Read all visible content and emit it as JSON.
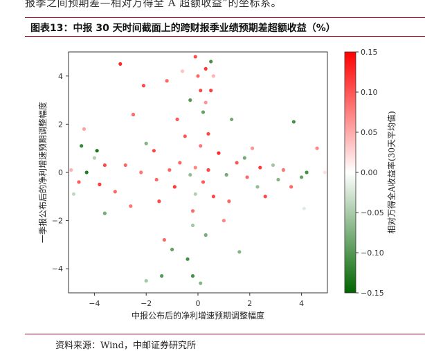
{
  "page": {
    "top_text": "报季之间预期差—相对万得全 A 超额收益”的坐标系。",
    "figure_title": "图表13：中报 30 天时间截面上的跨财报季业绩预期差超额收益（%）",
    "source": "资料来源：Wind，中邮证券研究所"
  },
  "chart_data": {
    "type": "scatter",
    "xlabel": "中报公布后的净利增速预期调整幅度",
    "ylabel": "一季报公布后的净利增速预期调整幅度",
    "colorbar_label": "相对万得全A收益率(30天平均值)",
    "xlim": [
      -5,
      5
    ],
    "ylim": [
      -5,
      5
    ],
    "x_ticks": [
      -4,
      -2,
      0,
      2,
      4
    ],
    "y_ticks": [
      -4,
      -2,
      0,
      2,
      4
    ],
    "x_tick_labels": [
      "−4",
      "−2",
      "0",
      "2",
      "4"
    ],
    "y_tick_labels": [
      "−4",
      "−2",
      "0",
      "2",
      "4"
    ],
    "color_range": [
      -0.15,
      0.15
    ],
    "color_ticks": [
      0.15,
      0.1,
      0.05,
      0.0,
      -0.05,
      -0.1,
      -0.15
    ],
    "color_tick_labels": [
      "0.15",
      "0.10",
      "0.05",
      "0.00",
      "−0.05",
      "−0.10",
      "−0.15"
    ],
    "colormap": {
      "low": "#006400",
      "mid": "#ffffff",
      "high": "#ff0000"
    },
    "points": [
      {
        "x": -3,
        "y": 4.5,
        "c": 0.14
      },
      {
        "x": -2.1,
        "y": 3.6,
        "c": 0.12
      },
      {
        "x": -2.5,
        "y": 2.4,
        "c": 0.1
      },
      {
        "x": -3.9,
        "y": 0.9,
        "c": -0.15
      },
      {
        "x": -4.5,
        "y": 1.1,
        "c": -0.13
      },
      {
        "x": -4.8,
        "y": -0.9,
        "c": -0.04
      },
      {
        "x": -4.4,
        "y": 1.8,
        "c": 0.06
      },
      {
        "x": -3.6,
        "y": -1.7,
        "c": -0.09
      },
      {
        "x": -2.0,
        "y": -4.5,
        "c": -0.06
      },
      {
        "x": -1.4,
        "y": -4.3,
        "c": -0.11
      },
      {
        "x": 0.1,
        "y": -4.6,
        "c": -0.08
      },
      {
        "x": -0.2,
        "y": -4.3,
        "c": -0.12
      },
      {
        "x": 3.7,
        "y": 2.1,
        "c": -0.12
      },
      {
        "x": 4.6,
        "y": 1.0,
        "c": 0.08
      },
      {
        "x": 4.9,
        "y": 0.0,
        "c": 0.02
      },
      {
        "x": 4.2,
        "y": 0.0,
        "c": -0.12
      },
      {
        "x": 4.0,
        "y": -0.2,
        "c": -0.1
      },
      {
        "x": 3.3,
        "y": 0.1,
        "c": 0.09
      },
      {
        "x": 4.1,
        "y": -1.5,
        "c": -0.02
      },
      {
        "x": 2.1,
        "y": 1.0,
        "c": 0.07
      },
      {
        "x": 1.8,
        "y": 0.6,
        "c": -0.09
      },
      {
        "x": 2.3,
        "y": -0.6,
        "c": -0.07
      },
      {
        "x": 1.6,
        "y": -3.3,
        "c": -0.08
      },
      {
        "x": 1.2,
        "y": -1.2,
        "c": 0.1
      },
      {
        "x": 0.6,
        "y": 4.0,
        "c": 0.05
      },
      {
        "x": 0.5,
        "y": 4.6,
        "c": -0.12
      },
      {
        "x": 0.3,
        "y": 4.3,
        "c": 0.13
      },
      {
        "x": -0.1,
        "y": 4.8,
        "c": 0.12
      },
      {
        "x": -1.2,
        "y": 3.8,
        "c": 0.1
      },
      {
        "x": -0.8,
        "y": 2.2,
        "c": 0.11
      },
      {
        "x": 1.3,
        "y": 2.2,
        "c": -0.09
      },
      {
        "x": -1.7,
        "y": 0.9,
        "c": 0.12
      },
      {
        "x": -2.0,
        "y": 1.2,
        "c": -0.08
      },
      {
        "x": -2.8,
        "y": 0.3,
        "c": 0.1
      },
      {
        "x": -3.6,
        "y": 0.3,
        "c": 0.12
      },
      {
        "x": -4.3,
        "y": 0.0,
        "c": -0.14
      },
      {
        "x": -4.9,
        "y": 0.1,
        "c": 0.05
      },
      {
        "x": -4.6,
        "y": -0.4,
        "c": 0.11
      },
      {
        "x": -3.8,
        "y": -0.5,
        "c": 0.13
      },
      {
        "x": -3.2,
        "y": -0.8,
        "c": 0.1
      },
      {
        "x": -2.6,
        "y": -1.4,
        "c": 0.09
      },
      {
        "x": -1.5,
        "y": -1.2,
        "c": 0.12
      },
      {
        "x": -1.3,
        "y": -2.8,
        "c": 0.1
      },
      {
        "x": -1.0,
        "y": -3.2,
        "c": -0.1
      },
      {
        "x": 1.0,
        "y": -2.0,
        "c": 0.08
      },
      {
        "x": 2.6,
        "y": -1.0,
        "c": 0.12
      },
      {
        "x": 3.6,
        "y": -0.6,
        "c": 0.1
      },
      {
        "x": 3.1,
        "y": -0.3,
        "c": -0.08
      },
      {
        "x": 2.4,
        "y": 0.2,
        "c": 0.13
      },
      {
        "x": 1.5,
        "y": 0.4,
        "c": 0.11
      },
      {
        "x": 0.8,
        "y": 0.8,
        "c": 0.14
      },
      {
        "x": 0.4,
        "y": 1.6,
        "c": 0.12
      },
      {
        "x": 0.1,
        "y": 3.4,
        "c": 0.12
      },
      {
        "x": 0.2,
        "y": 2.5,
        "c": -0.1
      },
      {
        "x": -0.5,
        "y": 1.5,
        "c": 0.11
      },
      {
        "x": -0.3,
        "y": 3.0,
        "c": -0.11
      },
      {
        "x": -0.6,
        "y": 4.2,
        "c": 0.04
      },
      {
        "x": 0.0,
        "y": 4.0,
        "c": 0.1
      },
      {
        "x": 0.5,
        "y": 3.4,
        "c": 0.13
      },
      {
        "x": -0.2,
        "y": -1.6,
        "c": 0.1
      },
      {
        "x": 0.3,
        "y": -2.6,
        "c": -0.09
      },
      {
        "x": -0.4,
        "y": -3.6,
        "c": -0.12
      },
      {
        "x": 0.6,
        "y": -1.0,
        "c": 0.12
      },
      {
        "x": -0.9,
        "y": -0.6,
        "c": 0.13
      },
      {
        "x": -1.6,
        "y": -0.3,
        "c": 0.1
      },
      {
        "x": -2.2,
        "y": 0.0,
        "c": 0.09
      },
      {
        "x": 1.9,
        "y": -0.2,
        "c": 0.1
      },
      {
        "x": 2.9,
        "y": 0.3,
        "c": -0.06
      },
      {
        "x": -4.0,
        "y": 0.6,
        "c": -0.05
      },
      {
        "x": -0.1,
        "y": 0.2,
        "c": 0.08
      },
      {
        "x": 0.2,
        "y": -0.4,
        "c": 0.11
      },
      {
        "x": -0.3,
        "y": -0.1,
        "c": -0.07
      },
      {
        "x": 0.1,
        "y": 1.1,
        "c": 0.09
      },
      {
        "x": -0.1,
        "y": -0.9,
        "c": -0.05
      },
      {
        "x": 0.4,
        "y": 0.1,
        "c": 0.12
      },
      {
        "x": -0.7,
        "y": 0.4,
        "c": 0.1
      },
      {
        "x": 1.1,
        "y": -0.1,
        "c": -0.09
      },
      {
        "x": -1.1,
        "y": 0.1,
        "c": 0.1
      },
      {
        "x": 0.3,
        "y": 2.9,
        "c": 0.07
      },
      {
        "x": -0.2,
        "y": -2.2,
        "c": -0.06
      }
    ]
  }
}
